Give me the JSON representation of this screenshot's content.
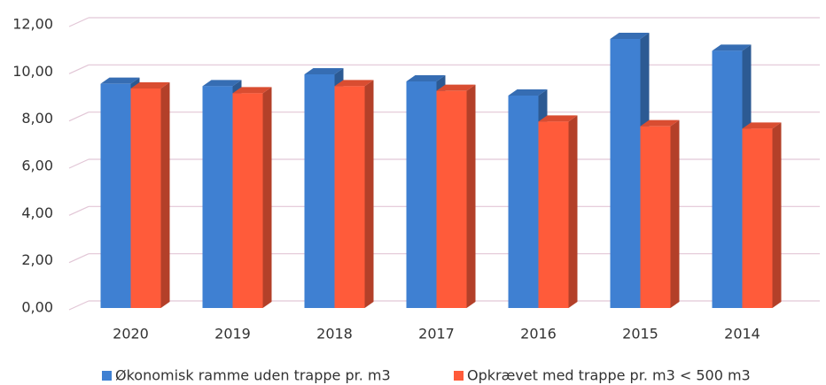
{
  "chart_data": {
    "type": "bar",
    "categories": [
      "2020",
      "2019",
      "2018",
      "2017",
      "2016",
      "2015",
      "2014"
    ],
    "series": [
      {
        "name": "Økonomisk ramme uden trappe pr. m3",
        "color": "#3f80d2",
        "values": [
          9.2,
          9.1,
          9.6,
          9.3,
          8.7,
          11.1,
          10.6
        ]
      },
      {
        "name": "Opkrævet med trappe pr. m3 < 500 m3",
        "color": "#ff5b3a",
        "values": [
          9.0,
          8.8,
          9.1,
          8.9,
          7.6,
          7.4,
          7.3
        ]
      }
    ],
    "ylim": [
      0,
      12
    ],
    "yticks": [
      {
        "value": 0,
        "label": "0,00"
      },
      {
        "value": 2,
        "label": "2,00"
      },
      {
        "value": 4,
        "label": "4,00"
      },
      {
        "value": 6,
        "label": "6,00"
      },
      {
        "value": 8,
        "label": "8,00"
      },
      {
        "value": 10,
        "label": "10,00"
      },
      {
        "value": 12,
        "label": "12,00"
      }
    ],
    "grid": true,
    "legend": "bottom"
  }
}
